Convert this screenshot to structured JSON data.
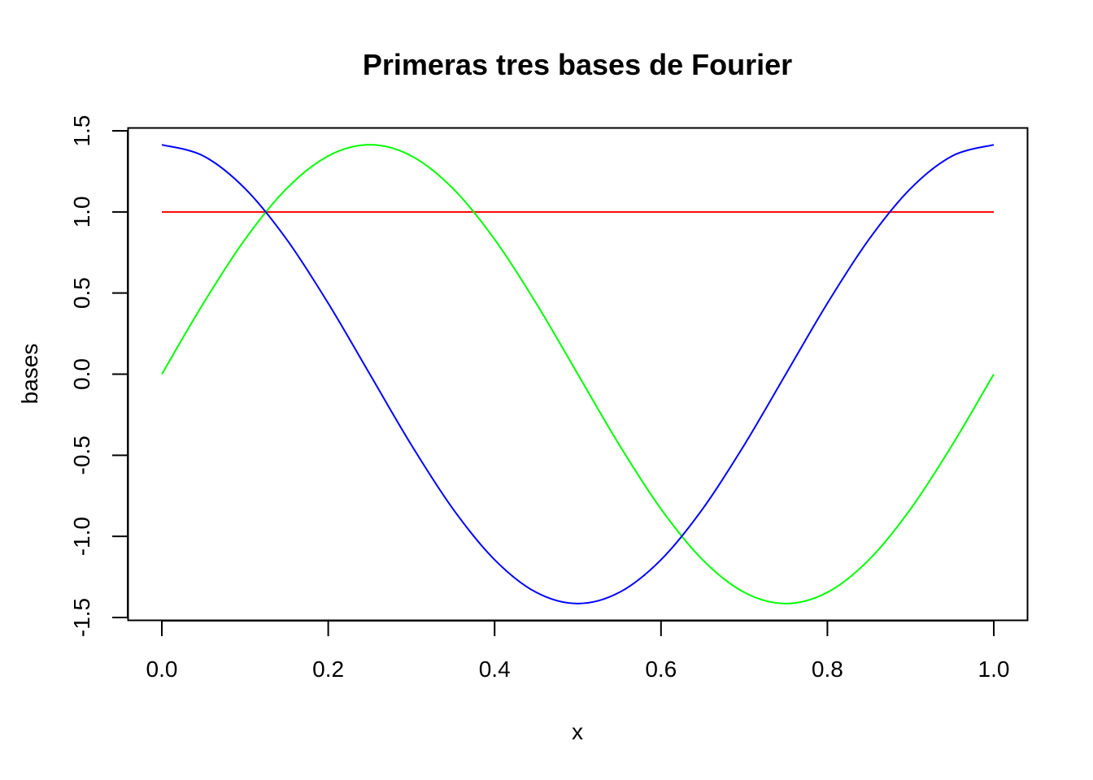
{
  "chart_data": {
    "type": "line",
    "title": "Primeras tres bases de Fourier",
    "xlabel": "x",
    "ylabel": "bases",
    "xlim": [
      0.0,
      1.0
    ],
    "ylim": [
      -1.5,
      1.5
    ],
    "grid": false,
    "legend": "none",
    "x_ticks": [
      "0.0",
      "0.2",
      "0.4",
      "0.6",
      "0.8",
      "1.0"
    ],
    "y_ticks": [
      "-1.5",
      "-1.0",
      "-0.5",
      "0.0",
      "0.5",
      "1.0",
      "1.5"
    ],
    "x": [
      0.0,
      0.05,
      0.1,
      0.15,
      0.2,
      0.25,
      0.3,
      0.35,
      0.4,
      0.45,
      0.5,
      0.55,
      0.6,
      0.65,
      0.7,
      0.75,
      0.8,
      0.85,
      0.9,
      0.95,
      1.0
    ],
    "series": [
      {
        "color": "#ff0000",
        "values": [
          1.0,
          1.0,
          1.0,
          1.0,
          1.0,
          1.0,
          1.0,
          1.0,
          1.0,
          1.0,
          1.0,
          1.0,
          1.0,
          1.0,
          1.0,
          1.0,
          1.0,
          1.0,
          1.0,
          1.0,
          1.0
        ]
      },
      {
        "color": "#00ff00",
        "values": [
          0.0,
          0.437,
          0.831,
          1.144,
          1.345,
          1.414,
          1.345,
          1.144,
          0.831,
          0.437,
          0.0,
          -0.437,
          -0.831,
          -1.144,
          -1.345,
          -1.414,
          -1.345,
          -1.144,
          -0.831,
          -0.437,
          0.0
        ]
      },
      {
        "color": "#0000ff",
        "values": [
          1.414,
          1.345,
          1.144,
          0.831,
          0.437,
          0.0,
          -0.437,
          -0.831,
          -1.144,
          -1.345,
          -1.414,
          -1.345,
          -1.144,
          -0.831,
          -0.437,
          0.0,
          0.437,
          0.831,
          1.144,
          1.345,
          1.414
        ]
      }
    ]
  }
}
